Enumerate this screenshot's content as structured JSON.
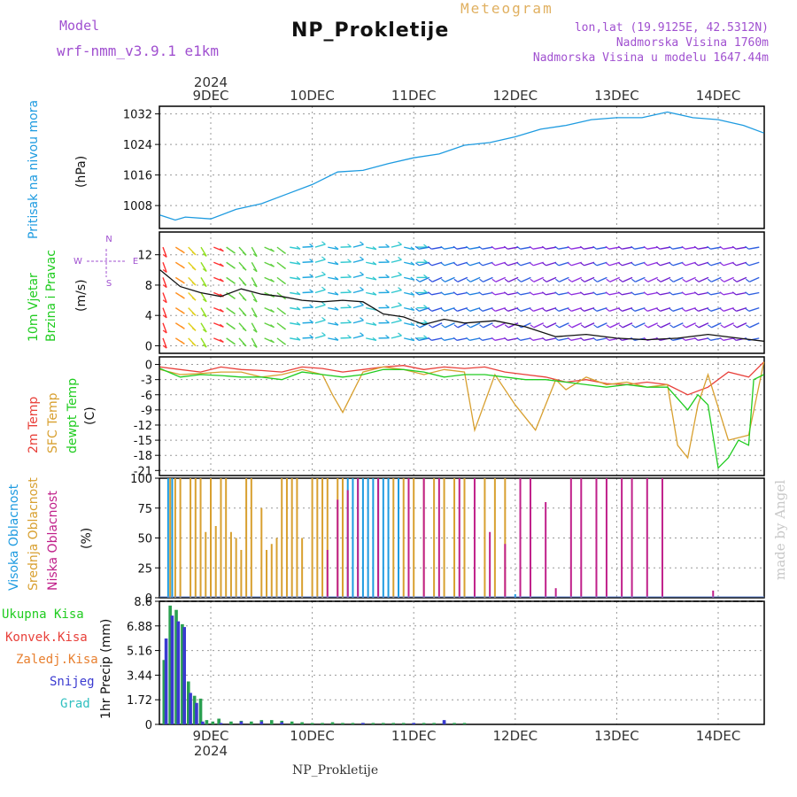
{
  "header": {
    "model_label": "Model",
    "model_name": "wrf-nmm_v3.9.1 e1km",
    "title": "NP_Prokletije",
    "meteogram": "Meteogram",
    "lonlat": "lon,lat (19.9125E, 42.5312N)",
    "altitude": "Nadmorska Visina 1760m",
    "model_altitude": "Nadmorska Visina u modelu 1647.44m",
    "year_top": "2024",
    "year_bottom": "2024",
    "footer": "NP_Prokletije",
    "made_by": "made by Angel"
  },
  "colors": {
    "pressure": "#1e9be0",
    "temp2m": "#e8403a",
    "sfc_temp": "#d8a030",
    "dewpt": "#20cc20",
    "high_cloud": "#1e9be0",
    "mid_cloud": "#d8a030",
    "low_cloud": "#c0208a",
    "total_precip": "#2aa050",
    "conv_precip": "#e8403a",
    "frz_precip": "#e88030",
    "snow": "#3a3ad0",
    "graupel": "#30c0c0"
  },
  "chart_data": [
    {
      "id": "pressure",
      "type": "line",
      "ylabel": [
        "Pritisak na nivou mora",
        "(hPa)"
      ],
      "x_ticks": [
        "9DEC",
        "10DEC",
        "11DEC",
        "12DEC",
        "13DEC",
        "14DEC"
      ],
      "y_ticks": [
        "1032",
        "1024",
        "1016",
        "1008"
      ],
      "ylim": [
        1002,
        1034
      ],
      "grid": true,
      "series": [
        {
          "name": "",
          "x": [
            0,
            0.15,
            0.25,
            0.5,
            0.75,
            1.0,
            1.25,
            1.5,
            1.75,
            2.0,
            2.25,
            2.5,
            2.75,
            3.0,
            3.25,
            3.5,
            3.75,
            4.0,
            4.25,
            4.5,
            4.75,
            5.0,
            5.25,
            5.5,
            5.75,
            5.95
          ],
          "y": [
            1005.5,
            1004.2,
            1005.0,
            1004.5,
            1007.0,
            1008.5,
            1011.0,
            1013.5,
            1016.8,
            1017.2,
            1019.0,
            1020.5,
            1021.5,
            1023.8,
            1024.5,
            1026.0,
            1028.0,
            1029.0,
            1030.5,
            1031.0,
            1031.0,
            1032.5,
            1031.0,
            1030.5,
            1029.0,
            1027.0
          ]
        }
      ]
    },
    {
      "id": "wind",
      "type": "line",
      "ylabel": [
        "10m Vjetar",
        "Brzina i Pravac",
        "(m/s)"
      ],
      "compass": [
        "N",
        "W",
        "E",
        "S"
      ],
      "y_ticks": [
        "12",
        "8",
        "4",
        "0"
      ],
      "ylim": [
        -1,
        15
      ],
      "grid": true,
      "series": [
        {
          "name": "",
          "x": [
            0,
            0.2,
            0.4,
            0.6,
            0.8,
            1.0,
            1.2,
            1.4,
            1.6,
            1.8,
            2.0,
            2.2,
            2.4,
            2.6,
            2.8,
            3.0,
            3.3,
            3.6,
            3.9,
            4.2,
            4.5,
            4.8,
            5.1,
            5.4,
            5.7,
            5.95
          ],
          "y": [
            10.0,
            7.8,
            7.0,
            6.5,
            7.5,
            6.8,
            6.5,
            6.0,
            5.8,
            6.0,
            5.8,
            4.2,
            3.8,
            2.8,
            3.5,
            3.0,
            3.3,
            2.5,
            1.2,
            1.5,
            1.0,
            0.8,
            1.0,
            1.5,
            1.0,
            0.6
          ]
        }
      ]
    },
    {
      "id": "temperature",
      "type": "line",
      "ylabel": [
        "2m Temp",
        "SFC Temp",
        "dewpt Temp",
        "(C)"
      ],
      "y_ticks": [
        "0",
        "-3",
        "-6",
        "-9",
        "-12",
        "-15",
        "-18",
        "-21"
      ],
      "ylim": [
        -22,
        1.5
      ],
      "grid": true,
      "series": [
        {
          "name": "",
          "color_key": "temp2m",
          "x": [
            0,
            0.2,
            0.4,
            0.6,
            0.8,
            1.0,
            1.2,
            1.4,
            1.6,
            1.8,
            2.0,
            2.2,
            2.4,
            2.6,
            2.8,
            3.0,
            3.2,
            3.4,
            3.6,
            3.8,
            4.0,
            4.2,
            4.4,
            4.6,
            4.8,
            5.0,
            5.2,
            5.4,
            5.6,
            5.8,
            5.95
          ],
          "y": [
            -0.5,
            -1.0,
            -1.5,
            -0.5,
            -1.0,
            -1.2,
            -1.5,
            -0.5,
            -0.8,
            -1.5,
            -1.0,
            -0.5,
            -0.2,
            -1.0,
            -0.5,
            -0.8,
            -0.5,
            -1.5,
            -2.0,
            -2.5,
            -3.5,
            -3.0,
            -3.8,
            -4.0,
            -3.5,
            -4.0,
            -6.0,
            -4.5,
            -1.5,
            -2.5,
            0.5
          ]
        },
        {
          "name": "",
          "color_key": "sfc_temp",
          "x": [
            0,
            0.2,
            0.4,
            0.6,
            0.8,
            1.0,
            1.2,
            1.4,
            1.6,
            1.7,
            1.8,
            2.0,
            2.2,
            2.4,
            2.6,
            2.8,
            3.0,
            3.1,
            3.3,
            3.5,
            3.7,
            3.9,
            4.0,
            4.2,
            4.4,
            4.6,
            4.8,
            5.0,
            5.1,
            5.2,
            5.3,
            5.4,
            5.6,
            5.8,
            5.95
          ],
          "y": [
            -1.0,
            -2.0,
            -1.8,
            -1.5,
            -1.5,
            -2.5,
            -2.0,
            -1.0,
            -2.0,
            -6.0,
            -9.5,
            -1.5,
            -0.5,
            -1.0,
            -2.0,
            -1.0,
            -1.5,
            -13.0,
            -2.0,
            -8.0,
            -13.0,
            -3.0,
            -5.0,
            -2.5,
            -4.0,
            -3.5,
            -4.5,
            -4.0,
            -16.0,
            -18.5,
            -8.0,
            -2.0,
            -15.0,
            -14.0,
            0.5
          ]
        },
        {
          "name": "",
          "color_key": "dewpt",
          "x": [
            0,
            0.2,
            0.4,
            0.6,
            0.8,
            1.0,
            1.2,
            1.4,
            1.6,
            1.8,
            2.0,
            2.2,
            2.4,
            2.6,
            2.8,
            3.0,
            3.2,
            3.4,
            3.6,
            3.8,
            4.0,
            4.2,
            4.4,
            4.6,
            4.8,
            5.0,
            5.2,
            5.3,
            5.4,
            5.5,
            5.6,
            5.7,
            5.8,
            5.85,
            5.95
          ],
          "y": [
            -0.8,
            -2.5,
            -2.0,
            -2.2,
            -2.5,
            -2.5,
            -3.0,
            -1.5,
            -2.0,
            -2.5,
            -2.0,
            -1.0,
            -1.0,
            -1.5,
            -2.5,
            -2.0,
            -2.0,
            -2.5,
            -3.0,
            -3.0,
            -3.5,
            -4.0,
            -4.5,
            -4.0,
            -4.5,
            -4.5,
            -9.0,
            -6.0,
            -8.0,
            -20.5,
            -18.5,
            -15.0,
            -16.0,
            -3.0,
            -2.0
          ]
        }
      ]
    },
    {
      "id": "clouds",
      "type": "bar",
      "ylabel": [
        "Visoka Oblacnost",
        "Srednja Oblacnost",
        "Niska Oblacnost",
        "(%)"
      ],
      "y_ticks": [
        "100",
        "75",
        "50",
        "25",
        "0"
      ],
      "ylim": [
        0,
        100
      ],
      "grid": true,
      "series": [
        {
          "name": "",
          "color_key": "high_cloud",
          "x": [
            0.08,
            0.12,
            1.85,
            1.9,
            1.95,
            2.0,
            2.05,
            2.1,
            2.15,
            2.2,
            2.25,
            2.35,
            3.5
          ],
          "y": [
            100,
            100,
            100,
            100,
            100,
            100,
            100,
            100,
            100,
            100,
            100,
            100,
            3
          ]
        },
        {
          "name": "",
          "color_key": "mid_cloud",
          "x": [
            0.1,
            0.15,
            0.2,
            0.3,
            0.35,
            0.4,
            0.45,
            0.5,
            0.55,
            0.6,
            0.65,
            0.7,
            0.75,
            0.8,
            0.85,
            0.9,
            1.0,
            1.05,
            1.1,
            1.15,
            1.2,
            1.25,
            1.3,
            1.35,
            1.4,
            1.5,
            1.55,
            1.6,
            1.65,
            1.75,
            1.8,
            2.3,
            2.4,
            2.5,
            2.6,
            2.7,
            2.8,
            2.9,
            3.0,
            3.2,
            3.3,
            3.4
          ],
          "y": [
            100,
            100,
            100,
            100,
            100,
            100,
            55,
            100,
            60,
            100,
            100,
            55,
            50,
            40,
            100,
            100,
            75,
            40,
            45,
            50,
            100,
            100,
            100,
            100,
            50,
            100,
            100,
            100,
            100,
            100,
            100,
            100,
            100,
            100,
            100,
            100,
            100,
            100,
            100,
            100,
            100,
            100
          ]
        },
        {
          "name": "",
          "color_key": "low_cloud",
          "x": [
            1.65,
            1.75,
            1.85,
            1.95,
            2.15,
            2.45,
            2.6,
            2.75,
            2.95,
            3.1,
            3.25,
            3.4,
            3.55,
            3.65,
            3.8,
            3.9,
            4.05,
            4.15,
            4.3,
            4.4,
            4.55,
            4.65,
            4.8,
            4.95,
            5.45
          ],
          "y": [
            40,
            82,
            90,
            100,
            100,
            100,
            100,
            100,
            100,
            100,
            55,
            45,
            100,
            100,
            80,
            8,
            100,
            100,
            100,
            100,
            100,
            100,
            100,
            100,
            6
          ]
        }
      ]
    },
    {
      "id": "precip",
      "type": "bar",
      "ylabel": [
        "1hr Precip (mm)"
      ],
      "legend": [
        "Ukupna Kisa",
        "Konvek.Kisa",
        "Zaledj.Kisa",
        "Snijeg",
        "Grad"
      ],
      "x_ticks": [
        "9DEC",
        "10DEC",
        "11DEC",
        "12DEC",
        "13DEC",
        "14DEC"
      ],
      "y_ticks": [
        "8.6",
        "6.88",
        "5.16",
        "3.44",
        "1.72",
        "0"
      ],
      "ylim": [
        0,
        8.6
      ],
      "grid": true,
      "series": [
        {
          "name": "Ukupna Kisa",
          "color_key": "total_precip",
          "x": [
            0.04,
            0.1,
            0.16,
            0.22,
            0.28,
            0.34,
            0.4,
            0.46,
            0.52,
            0.58,
            0.7,
            0.8,
            0.9,
            1.0,
            1.1,
            1.2,
            1.3,
            1.4,
            1.5,
            1.6,
            1.7,
            1.8,
            1.9,
            2.0,
            2.1,
            2.2,
            2.3,
            2.4,
            2.5,
            2.6,
            2.7,
            2.8,
            2.9,
            3.0
          ],
          "y": [
            4.5,
            8.3,
            8.0,
            7.0,
            3.0,
            2.0,
            1.8,
            0.3,
            0.2,
            0.4,
            0.2,
            0.25,
            0.2,
            0.3,
            0.3,
            0.25,
            0.2,
            0.15,
            0.1,
            0.1,
            0.15,
            0.1,
            0.1,
            0.1,
            0.1,
            0.1,
            0.1,
            0.1,
            0.1,
            0.1,
            0.1,
            0.2,
            0.1,
            0.1
          ]
        },
        {
          "name": "Snijeg",
          "color_key": "snow",
          "x": [
            0.06,
            0.12,
            0.18,
            0.24,
            0.3,
            0.36,
            0.42,
            0.6,
            0.8,
            1.0,
            1.2,
            2.0,
            2.5,
            2.8
          ],
          "y": [
            6.0,
            7.6,
            7.2,
            6.8,
            2.2,
            1.5,
            0.2,
            0.1,
            0.2,
            0.2,
            0.15,
            0.1,
            0.1,
            0.3
          ]
        }
      ]
    }
  ]
}
